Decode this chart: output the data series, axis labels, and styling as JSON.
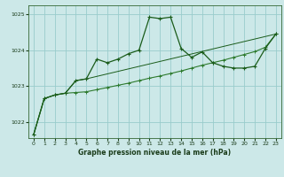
{
  "title": "Graphe pression niveau de la mer (hPa)",
  "bg_color": "#cce8e8",
  "grid_color": "#99cccc",
  "line_color1": "#1a5c1a",
  "line_color2": "#2d7a2d",
  "xlim": [
    -0.5,
    23.5
  ],
  "ylim": [
    1021.55,
    1025.25
  ],
  "yticks": [
    1022,
    1023,
    1024,
    1025
  ],
  "xticks": [
    0,
    1,
    2,
    3,
    4,
    5,
    6,
    7,
    8,
    9,
    10,
    11,
    12,
    13,
    14,
    15,
    16,
    17,
    18,
    19,
    20,
    21,
    22,
    23
  ],
  "series1_x": [
    0,
    1,
    2,
    3,
    4,
    5,
    6,
    7,
    8,
    9,
    10,
    11,
    12,
    13,
    14,
    15,
    16,
    17,
    18,
    19,
    20,
    21,
    22,
    23
  ],
  "series1_y": [
    1021.65,
    1022.65,
    1022.75,
    1022.8,
    1023.15,
    1023.2,
    1023.75,
    1023.65,
    1023.75,
    1023.9,
    1024.0,
    1024.92,
    1024.88,
    1024.92,
    1024.05,
    1023.8,
    1023.95,
    1023.65,
    1023.55,
    1023.5,
    1023.5,
    1023.55,
    1024.05,
    1024.45
  ],
  "series2_x": [
    0,
    1,
    2,
    3,
    4,
    5,
    6,
    7,
    8,
    9,
    10,
    11,
    12,
    13,
    14,
    15,
    16,
    17,
    18,
    19,
    20,
    21,
    22,
    23
  ],
  "series2_y": [
    1021.65,
    1022.65,
    1022.75,
    1022.8,
    1022.82,
    1022.84,
    1022.9,
    1022.96,
    1023.02,
    1023.08,
    1023.15,
    1023.22,
    1023.28,
    1023.35,
    1023.42,
    1023.5,
    1023.58,
    1023.65,
    1023.72,
    1023.8,
    1023.88,
    1023.96,
    1024.08,
    1024.45
  ],
  "series3_x": [
    0,
    1,
    2,
    3,
    4,
    5,
    23
  ],
  "series3_y": [
    1021.65,
    1022.65,
    1022.75,
    1022.8,
    1023.15,
    1023.2,
    1024.45
  ]
}
